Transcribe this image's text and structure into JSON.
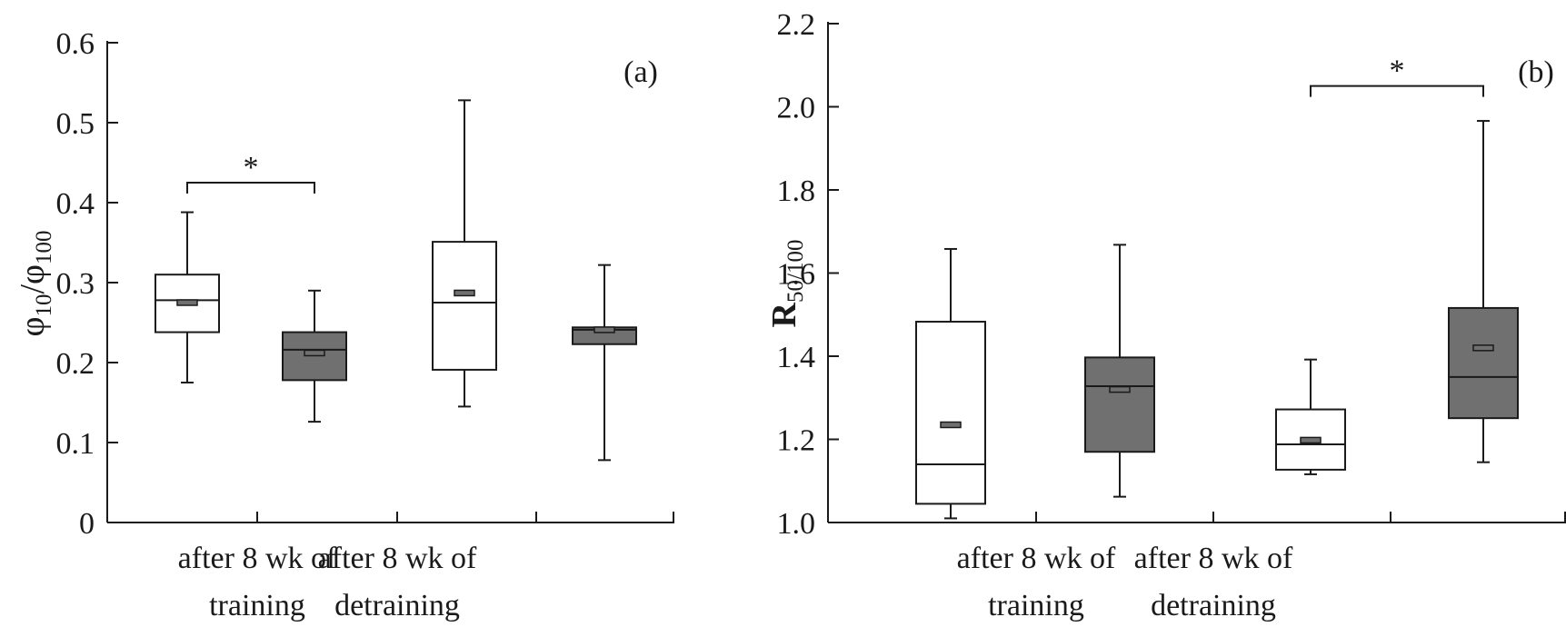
{
  "chart_data": [
    {
      "type": "box",
      "panel_label": "(a)",
      "ylabel_base": "φ",
      "ylabel_sub1": "10",
      "ylabel_sep": "/φ",
      "ylabel_sub2": "100",
      "ylim": [
        0,
        0.6
      ],
      "yticks": [
        "0",
        "0.1",
        "0.2",
        "0.3",
        "0.4",
        "0.5",
        "0.6"
      ],
      "ytick_values": [
        0,
        0.1,
        0.2,
        0.3,
        0.4,
        0.5,
        0.6
      ],
      "categories": [
        {
          "line1": "after 8 wk of",
          "line2": "training"
        },
        {
          "line1": "after 8 wk of",
          "line2": "detraining"
        }
      ],
      "boxes": [
        {
          "group": 0,
          "fill": "#ffffff",
          "whisker_low": 0.175,
          "q1": 0.238,
          "median": 0.278,
          "q3": 0.31,
          "whisker_high": 0.388,
          "mean": 0.275
        },
        {
          "group": 0,
          "fill": "#707070",
          "whisker_low": 0.126,
          "q1": 0.178,
          "median": 0.216,
          "q3": 0.238,
          "whisker_high": 0.29,
          "mean": 0.212
        },
        {
          "group": 1,
          "fill": "#ffffff",
          "whisker_low": 0.145,
          "q1": 0.191,
          "median": 0.275,
          "q3": 0.351,
          "whisker_high": 0.528,
          "mean": 0.287
        },
        {
          "group": 1,
          "fill": "#707070",
          "whisker_low": 0.078,
          "q1": 0.223,
          "median": 0.241,
          "q3": 0.244,
          "whisker_high": 0.322,
          "mean": 0.241
        }
      ],
      "significance": {
        "label": "*",
        "from_box": 0,
        "to_box": 1,
        "y": 0.425
      }
    },
    {
      "type": "box",
      "panel_label": "(b)",
      "ylabel_base": "R",
      "ylabel_sub1": "50/100",
      "ylim": [
        1.0,
        2.2
      ],
      "yticks": [
        "1.0",
        "1.2",
        "1.4",
        "1.6",
        "1.8",
        "2.0",
        "2.2"
      ],
      "ytick_values": [
        1.0,
        1.2,
        1.4,
        1.6,
        1.8,
        2.0,
        2.2
      ],
      "categories": [
        {
          "line1": "after 8 wk of",
          "line2": "training"
        },
        {
          "line1": "after 8 wk of",
          "line2": "detraining"
        }
      ],
      "boxes": [
        {
          "group": 0,
          "fill": "#ffffff",
          "whisker_low": 1.01,
          "q1": 1.045,
          "median": 1.14,
          "q3": 1.483,
          "whisker_high": 1.658,
          "mean": 1.235
        },
        {
          "group": 0,
          "fill": "#707070",
          "whisker_low": 1.062,
          "q1": 1.17,
          "median": 1.328,
          "q3": 1.397,
          "whisker_high": 1.668,
          "mean": 1.32
        },
        {
          "group": 1,
          "fill": "#ffffff",
          "whisker_low": 1.116,
          "q1": 1.127,
          "median": 1.188,
          "q3": 1.272,
          "whisker_high": 1.392,
          "mean": 1.198
        },
        {
          "group": 1,
          "fill": "#707070",
          "whisker_low": 1.145,
          "q1": 1.251,
          "median": 1.35,
          "q3": 1.516,
          "whisker_high": 1.966,
          "mean": 1.42
        }
      ],
      "significance": {
        "label": "*",
        "from_box": 2,
        "to_box": 3,
        "y": 2.05
      }
    }
  ]
}
